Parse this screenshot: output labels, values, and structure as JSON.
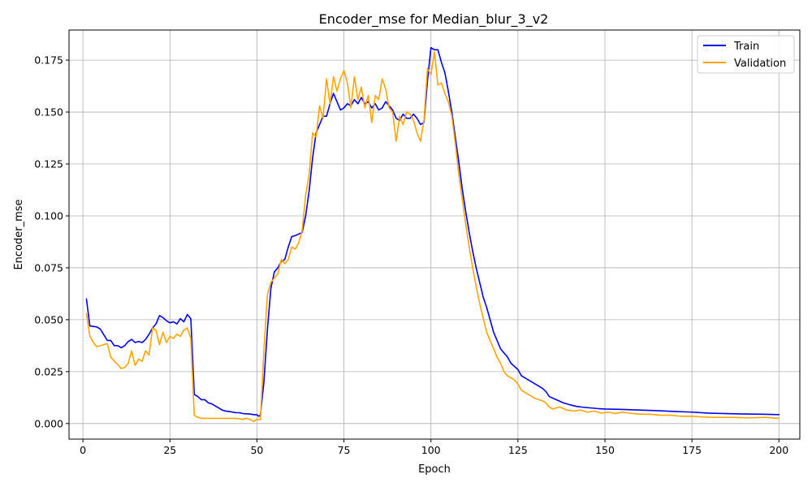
{
  "chart_data": {
    "type": "line",
    "title": "Encoder_mse for Median_blur_3_v2",
    "xlabel": "Epoch",
    "ylabel": "Encoder_mse",
    "xlim": [
      -4,
      206
    ],
    "ylim": [
      -0.0075,
      0.1895
    ],
    "xticks": [
      0,
      25,
      50,
      75,
      100,
      125,
      150,
      175,
      200
    ],
    "yticks": [
      0.0,
      0.025,
      0.05,
      0.075,
      0.1,
      0.125,
      0.15,
      0.175
    ],
    "ytick_labels": [
      "0.000",
      "0.025",
      "0.050",
      "0.075",
      "0.100",
      "0.125",
      "0.150",
      "0.175"
    ],
    "xtick_labels": [
      "0",
      "25",
      "50",
      "75",
      "100",
      "125",
      "150",
      "175",
      "200"
    ],
    "grid": true,
    "legend_position": "top-right",
    "series": [
      {
        "name": "Train",
        "color": "#0000ee",
        "points": [
          [
            1,
            0.06
          ],
          [
            2,
            0.047
          ],
          [
            4,
            0.0465
          ],
          [
            5,
            0.0455
          ],
          [
            7,
            0.04
          ],
          [
            8,
            0.04
          ],
          [
            9,
            0.0375
          ],
          [
            10,
            0.0375
          ],
          [
            11,
            0.0365
          ],
          [
            12,
            0.0375
          ],
          [
            13,
            0.0395
          ],
          [
            14,
            0.0405
          ],
          [
            15,
            0.039
          ],
          [
            16,
            0.0395
          ],
          [
            17,
            0.039
          ],
          [
            18,
            0.0405
          ],
          [
            19,
            0.043
          ],
          [
            20,
            0.046
          ],
          [
            21,
            0.048
          ],
          [
            22,
            0.052
          ],
          [
            23,
            0.051
          ],
          [
            24,
            0.0495
          ],
          [
            25,
            0.0485
          ],
          [
            26,
            0.049
          ],
          [
            27,
            0.048
          ],
          [
            28,
            0.0505
          ],
          [
            29,
            0.049
          ],
          [
            30,
            0.0525
          ],
          [
            31,
            0.0505
          ],
          [
            32,
            0.014
          ],
          [
            33,
            0.013
          ],
          [
            34,
            0.0115
          ],
          [
            35,
            0.0115
          ],
          [
            36,
            0.01
          ],
          [
            37,
            0.0095
          ],
          [
            38,
            0.0085
          ],
          [
            39,
            0.0075
          ],
          [
            40,
            0.0065
          ],
          [
            41,
            0.006
          ],
          [
            42,
            0.0058
          ],
          [
            44,
            0.0052
          ],
          [
            45,
            0.0052
          ],
          [
            46,
            0.0048
          ],
          [
            48,
            0.0046
          ],
          [
            49,
            0.0043
          ],
          [
            50,
            0.0042
          ],
          [
            50.5,
            0.0035
          ],
          [
            51,
            0.004
          ],
          [
            52,
            0.02
          ],
          [
            53,
            0.045
          ],
          [
            54,
            0.065
          ],
          [
            55,
            0.073
          ],
          [
            56,
            0.075
          ],
          [
            57,
            0.078
          ],
          [
            58,
            0.079
          ],
          [
            59,
            0.085
          ],
          [
            60,
            0.09
          ],
          [
            61,
            0.0905
          ],
          [
            63,
            0.092
          ],
          [
            64,
            0.1
          ],
          [
            65,
            0.112
          ],
          [
            66,
            0.128
          ],
          [
            67,
            0.14
          ],
          [
            68,
            0.144
          ],
          [
            69,
            0.148
          ],
          [
            70,
            0.148
          ],
          [
            71,
            0.154
          ],
          [
            72,
            0.159
          ],
          [
            73,
            0.155
          ],
          [
            74,
            0.151
          ],
          [
            75,
            0.152
          ],
          [
            76,
            0.154
          ],
          [
            77,
            0.153
          ],
          [
            78,
            0.156
          ],
          [
            79,
            0.154
          ],
          [
            80,
            0.157
          ],
          [
            81,
            0.154
          ],
          [
            82,
            0.155
          ],
          [
            83,
            0.152
          ],
          [
            84,
            0.154
          ],
          [
            85,
            0.151
          ],
          [
            86,
            0.152
          ],
          [
            87,
            0.155
          ],
          [
            88,
            0.153
          ],
          [
            89,
            0.151
          ],
          [
            90,
            0.147
          ],
          [
            91,
            0.146
          ],
          [
            92,
            0.149
          ],
          [
            93,
            0.147
          ],
          [
            94,
            0.147
          ],
          [
            95,
            0.149
          ],
          [
            96,
            0.147
          ],
          [
            97,
            0.144
          ],
          [
            98,
            0.145
          ],
          [
            99,
            0.165
          ],
          [
            100,
            0.181
          ],
          [
            101,
            0.18
          ],
          [
            102,
            0.18
          ],
          [
            103,
            0.174
          ],
          [
            104,
            0.169
          ],
          [
            105,
            0.16
          ],
          [
            106,
            0.15
          ],
          [
            107,
            0.138
          ],
          [
            108,
            0.126
          ],
          [
            109,
            0.113
          ],
          [
            110,
            0.102
          ],
          [
            111,
            0.092
          ],
          [
            112,
            0.083
          ],
          [
            113,
            0.075
          ],
          [
            114,
            0.068
          ],
          [
            115,
            0.061
          ],
          [
            116,
            0.056
          ],
          [
            117,
            0.05
          ],
          [
            118,
            0.044
          ],
          [
            119,
            0.04
          ],
          [
            120,
            0.036
          ],
          [
            122,
            0.032
          ],
          [
            123,
            0.029
          ],
          [
            125,
            0.026
          ],
          [
            126,
            0.023
          ],
          [
            128,
            0.021
          ],
          [
            130,
            0.019
          ],
          [
            132,
            0.017
          ],
          [
            133,
            0.0155
          ],
          [
            134,
            0.013
          ],
          [
            136,
            0.0115
          ],
          [
            138,
            0.01
          ],
          [
            140,
            0.009
          ],
          [
            142,
            0.0082
          ],
          [
            144,
            0.0078
          ],
          [
            146,
            0.0075
          ],
          [
            148,
            0.0072
          ],
          [
            150,
            0.007
          ],
          [
            155,
            0.0068
          ],
          [
            160,
            0.0065
          ],
          [
            165,
            0.0062
          ],
          [
            170,
            0.0058
          ],
          [
            175,
            0.0055
          ],
          [
            180,
            0.005
          ],
          [
            185,
            0.0048
          ],
          [
            190,
            0.0046
          ],
          [
            195,
            0.0045
          ],
          [
            200,
            0.0043
          ]
        ]
      },
      {
        "name": "Validation",
        "color": "#ffa500",
        "points": [
          [
            1,
            0.053
          ],
          [
            2,
            0.042
          ],
          [
            3,
            0.039
          ],
          [
            4,
            0.037
          ],
          [
            5,
            0.0375
          ],
          [
            6,
            0.038
          ],
          [
            7,
            0.0385
          ],
          [
            8,
            0.032
          ],
          [
            9,
            0.03
          ],
          [
            10,
            0.0285
          ],
          [
            11,
            0.0265
          ],
          [
            12,
            0.027
          ],
          [
            13,
            0.029
          ],
          [
            14,
            0.035
          ],
          [
            15,
            0.028
          ],
          [
            16,
            0.031
          ],
          [
            17,
            0.03
          ],
          [
            18,
            0.035
          ],
          [
            19,
            0.033
          ],
          [
            20,
            0.046
          ],
          [
            21,
            0.045
          ],
          [
            22,
            0.038
          ],
          [
            23,
            0.044
          ],
          [
            24,
            0.039
          ],
          [
            25,
            0.042
          ],
          [
            26,
            0.041
          ],
          [
            27,
            0.043
          ],
          [
            28,
            0.042
          ],
          [
            29,
            0.045
          ],
          [
            30,
            0.046
          ],
          [
            31,
            0.041
          ],
          [
            32,
            0.004
          ],
          [
            33,
            0.003
          ],
          [
            34,
            0.0025
          ],
          [
            38,
            0.0025
          ],
          [
            40,
            0.0025
          ],
          [
            42,
            0.0025
          ],
          [
            44,
            0.0025
          ],
          [
            46,
            0.002
          ],
          [
            47,
            0.0025
          ],
          [
            48,
            0.002
          ],
          [
            49,
            0.001
          ],
          [
            50,
            0.002
          ],
          [
            51,
            0.002
          ],
          [
            52,
            0.035
          ],
          [
            53,
            0.062
          ],
          [
            54,
            0.068
          ],
          [
            55,
            0.07
          ],
          [
            56,
            0.072
          ],
          [
            57,
            0.079
          ],
          [
            58,
            0.077
          ],
          [
            59,
            0.079
          ],
          [
            60,
            0.085
          ],
          [
            61,
            0.084
          ],
          [
            62,
            0.087
          ],
          [
            63,
            0.093
          ],
          [
            64,
            0.11
          ],
          [
            65,
            0.12
          ],
          [
            66,
            0.14
          ],
          [
            67,
            0.138
          ],
          [
            68,
            0.153
          ],
          [
            69,
            0.147
          ],
          [
            70,
            0.166
          ],
          [
            71,
            0.154
          ],
          [
            72,
            0.167
          ],
          [
            73,
            0.16
          ],
          [
            74,
            0.166
          ],
          [
            75,
            0.17
          ],
          [
            76,
            0.164
          ],
          [
            77,
            0.152
          ],
          [
            78,
            0.167
          ],
          [
            79,
            0.156
          ],
          [
            80,
            0.162
          ],
          [
            81,
            0.152
          ],
          [
            82,
            0.158
          ],
          [
            83,
            0.145
          ],
          [
            84,
            0.158
          ],
          [
            85,
            0.156
          ],
          [
            86,
            0.166
          ],
          [
            87,
            0.161
          ],
          [
            88,
            0.152
          ],
          [
            89,
            0.15
          ],
          [
            90,
            0.136
          ],
          [
            91,
            0.148
          ],
          [
            92,
            0.144
          ],
          [
            93,
            0.15
          ],
          [
            94,
            0.149
          ],
          [
            95,
            0.146
          ],
          [
            96,
            0.14
          ],
          [
            97,
            0.136
          ],
          [
            98,
            0.146
          ],
          [
            99,
            0.171
          ],
          [
            100,
            0.168
          ],
          [
            101,
            0.179
          ],
          [
            102,
            0.163
          ],
          [
            103,
            0.164
          ],
          [
            104,
            0.159
          ],
          [
            105,
            0.155
          ],
          [
            106,
            0.148
          ],
          [
            107,
            0.135
          ],
          [
            108,
            0.12
          ],
          [
            109,
            0.108
          ],
          [
            110,
            0.096
          ],
          [
            111,
            0.085
          ],
          [
            112,
            0.075
          ],
          [
            113,
            0.066
          ],
          [
            114,
            0.058
          ],
          [
            115,
            0.051
          ],
          [
            116,
            0.044
          ],
          [
            117,
            0.04
          ],
          [
            118,
            0.036
          ],
          [
            119,
            0.032
          ],
          [
            120,
            0.029
          ],
          [
            121,
            0.025
          ],
          [
            122,
            0.023
          ],
          [
            124,
            0.021
          ],
          [
            125,
            0.019
          ],
          [
            126,
            0.016
          ],
          [
            128,
            0.014
          ],
          [
            130,
            0.012
          ],
          [
            132,
            0.011
          ],
          [
            133,
            0.01
          ],
          [
            134,
            0.008
          ],
          [
            135,
            0.007
          ],
          [
            137,
            0.008
          ],
          [
            139,
            0.0065
          ],
          [
            141,
            0.006
          ],
          [
            143,
            0.0065
          ],
          [
            145,
            0.0055
          ],
          [
            147,
            0.006
          ],
          [
            149,
            0.005
          ],
          [
            151,
            0.0055
          ],
          [
            153,
            0.0048
          ],
          [
            155,
            0.0055
          ],
          [
            157,
            0.005
          ],
          [
            160,
            0.0045
          ],
          [
            163,
            0.0045
          ],
          [
            166,
            0.004
          ],
          [
            169,
            0.004
          ],
          [
            172,
            0.0035
          ],
          [
            175,
            0.0035
          ],
          [
            178,
            0.0032
          ],
          [
            181,
            0.003
          ],
          [
            184,
            0.003
          ],
          [
            187,
            0.003
          ],
          [
            190,
            0.0028
          ],
          [
            193,
            0.0028
          ],
          [
            196,
            0.003
          ],
          [
            200,
            0.0025
          ]
        ]
      }
    ]
  }
}
